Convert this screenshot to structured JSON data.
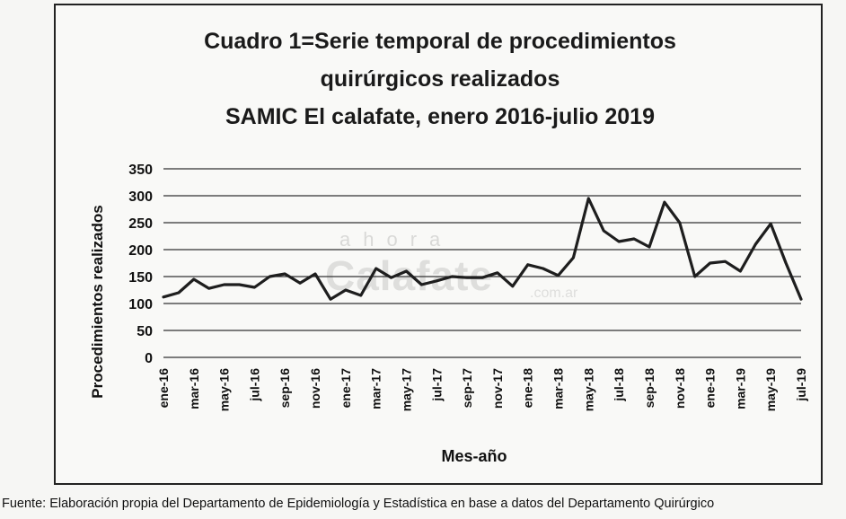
{
  "title_lines": [
    "Cuadro 1=Serie temporal de procedimientos",
    "quirúrgicos realizados",
    "SAMIC El calafate, enero 2016-julio 2019"
  ],
  "watermark": {
    "top": "ahora",
    "main": "Calafate",
    "sub": ".com.ar"
  },
  "source_note": "Fuente: Elaboración propia del Departamento de Epidemiología y Estadística en base a datos del Departamento Quirúrgico",
  "chart_data": {
    "type": "line",
    "title": "Cuadro 1=Serie temporal de procedimientos quirúrgicos realizados SAMIC El calafate, enero 2016-julio 2019",
    "xlabel": "Mes-año",
    "ylabel": "Procedimientos realizados",
    "ylim": [
      0,
      350
    ],
    "yticks": [
      0,
      50,
      100,
      150,
      200,
      250,
      300,
      350
    ],
    "grid": true,
    "legend": "none",
    "x": [
      "ene-16",
      "feb-16",
      "mar-16",
      "abr-16",
      "may-16",
      "jun-16",
      "jul-16",
      "ago-16",
      "sep-16",
      "oct-16",
      "nov-16",
      "dic-16",
      "ene-17",
      "feb-17",
      "mar-17",
      "abr-17",
      "may-17",
      "jun-17",
      "jul-17",
      "ago-17",
      "sep-17",
      "oct-17",
      "nov-17",
      "dic-17",
      "ene-18",
      "feb-18",
      "mar-18",
      "abr-18",
      "may-18",
      "jun-18",
      "jul-18",
      "ago-18",
      "sep-18",
      "oct-18",
      "nov-18",
      "dic-18",
      "ene-19",
      "feb-19",
      "mar-19",
      "abr-19",
      "may-19",
      "jun-19",
      "jul-19"
    ],
    "x_tick_labels": [
      "ene-16",
      "mar-16",
      "may-16",
      "jul-16",
      "sep-16",
      "nov-16",
      "ene-17",
      "mar-17",
      "may-17",
      "jul-17",
      "sep-17",
      "nov-17",
      "ene-18",
      "mar-18",
      "may-18",
      "jul-18",
      "sep-18",
      "nov-18",
      "ene-19",
      "mar-19",
      "may-19",
      "jul-19"
    ],
    "series": [
      {
        "values": [
          112,
          120,
          145,
          128,
          135,
          135,
          130,
          150,
          155,
          138,
          155,
          108,
          125,
          115,
          165,
          148,
          160,
          135,
          142,
          150,
          148,
          148,
          157,
          132,
          172,
          165,
          152,
          185,
          295,
          235,
          215,
          220,
          205,
          288,
          250,
          150,
          175,
          178,
          160,
          210,
          248,
          175,
          108
        ]
      }
    ],
    "line_color": "#1e1e1e"
  }
}
